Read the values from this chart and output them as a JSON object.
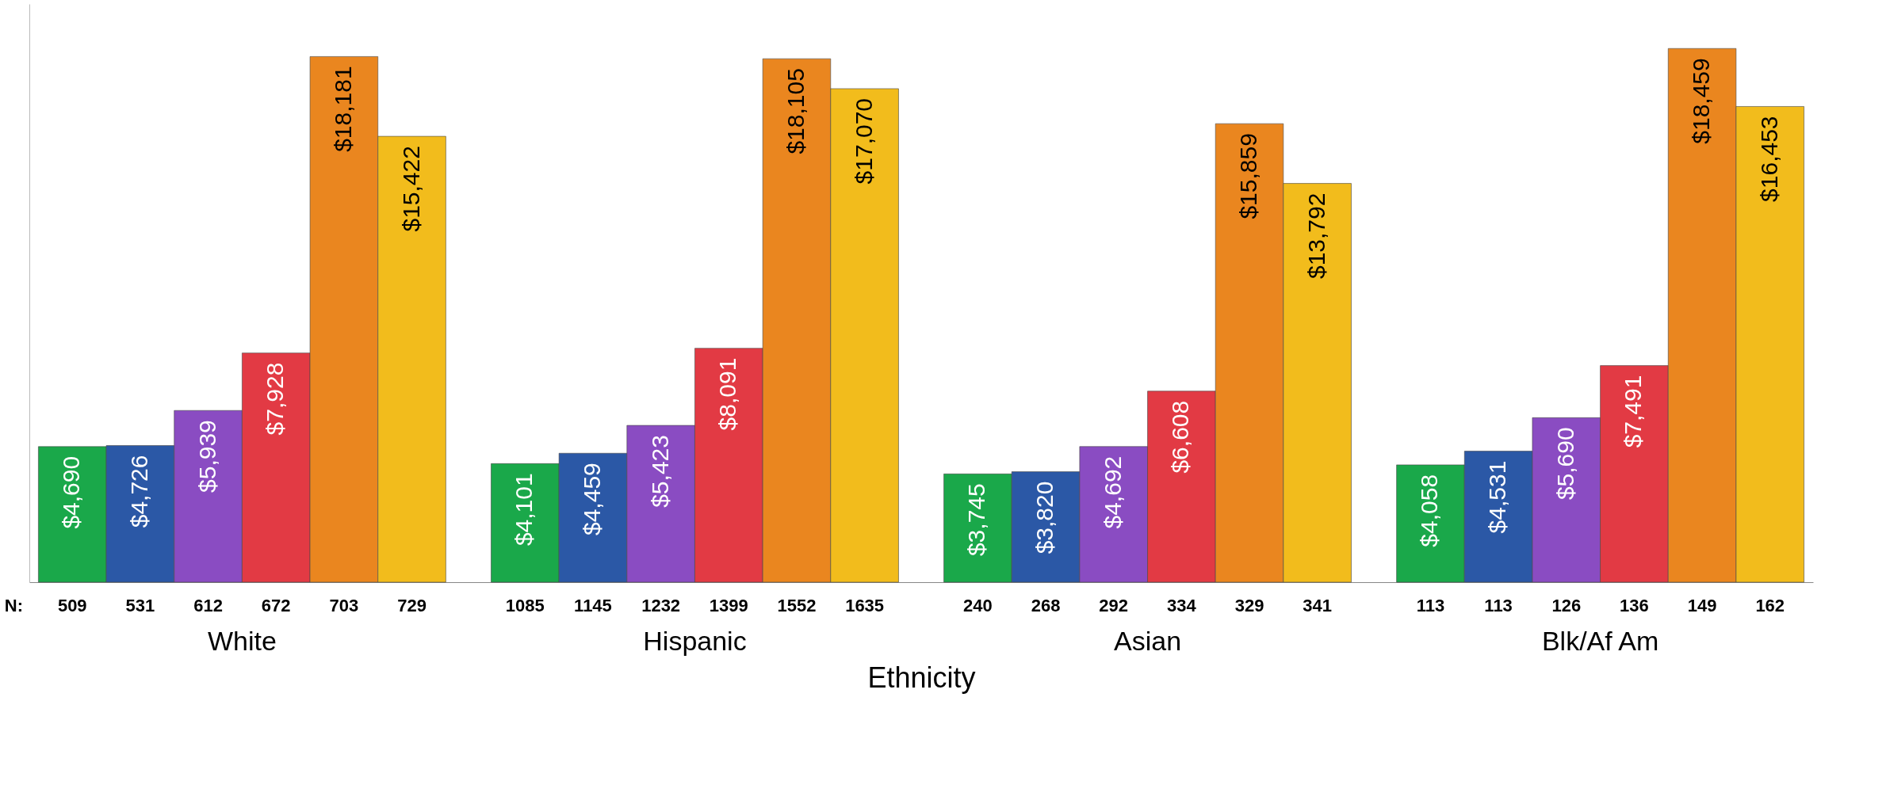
{
  "chart_data": {
    "type": "bar",
    "xlabel": "Ethnicity",
    "categories": [
      "White",
      "Hispanic",
      "Asian",
      "Blk/Af Am"
    ],
    "series": [
      {
        "color": "#1aa84a",
        "values": [
          4690,
          4101,
          3745,
          4058
        ],
        "value_labels": [
          "$4,690",
          "$4,101",
          "$3,745",
          "$4,058"
        ]
      },
      {
        "color": "#2b58a6",
        "values": [
          4726,
          4459,
          3820,
          4531
        ],
        "value_labels": [
          "$4,726",
          "$4,459",
          "$3,820",
          "$4,531"
        ]
      },
      {
        "color": "#8a4cc2",
        "values": [
          5939,
          5423,
          4692,
          5690
        ],
        "value_labels": [
          "$5,939",
          "$5,423",
          "$4,692",
          "$5,690"
        ]
      },
      {
        "color": "#e23a44",
        "values": [
          7928,
          8091,
          6608,
          7491
        ],
        "value_labels": [
          "$7,928",
          "$8,091",
          "$6,608",
          "$7,491"
        ]
      },
      {
        "color": "#ea861f",
        "values": [
          18181,
          18105,
          15859,
          18459
        ],
        "value_labels": [
          "$18,181",
          "$18,105",
          "$15,859",
          "$18,459"
        ]
      },
      {
        "color": "#f2bc1c",
        "values": [
          15422,
          17070,
          13792,
          16453
        ],
        "value_labels": [
          "$15,422",
          "$17,070",
          "$13,792",
          "$16,453"
        ]
      }
    ],
    "grid": false,
    "tick_labels": "x",
    "annotations": [
      "N:",
      "509",
      "531",
      "612",
      "672",
      "703",
      "729",
      "1085",
      "1145",
      "1232",
      "1399",
      "1552",
      "1635",
      "240",
      "268",
      "292",
      "334",
      "329",
      "341",
      "113",
      "113",
      "126",
      "136",
      "149",
      "162"
    ]
  }
}
